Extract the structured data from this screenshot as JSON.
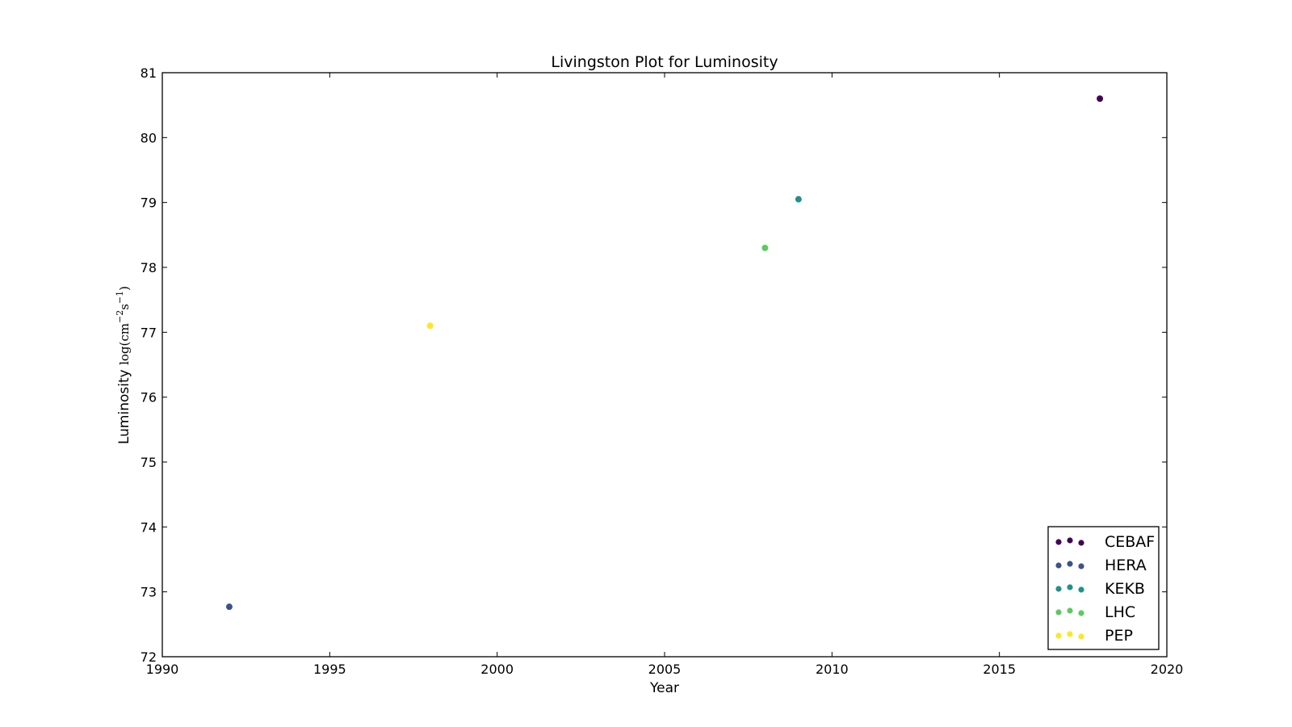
{
  "chart_data": {
    "type": "scatter",
    "title": "Livingston Plot for Luminosity",
    "xlabel": "Year",
    "ylabel": {
      "text": "Luminosity",
      "unit_parts": [
        "log(cm",
        "−2",
        "s",
        "−1",
        ")"
      ]
    },
    "xlim": [
      1990,
      2020
    ],
    "ylim": [
      72,
      81
    ],
    "x_ticks": [
      1990,
      1995,
      2000,
      2005,
      2010,
      2015,
      2020
    ],
    "y_ticks": [
      72,
      73,
      74,
      75,
      76,
      77,
      78,
      79,
      80,
      81
    ],
    "grid": false,
    "legend_position": "bottom-right",
    "series": [
      {
        "name": "CEBAF",
        "color": "#440154",
        "points": [
          {
            "x": 2018,
            "y": 80.6
          }
        ]
      },
      {
        "name": "HERA",
        "color": "#3b528b",
        "points": [
          {
            "x": 1992,
            "y": 72.77
          }
        ]
      },
      {
        "name": "KEKB",
        "color": "#21918c",
        "points": [
          {
            "x": 2009,
            "y": 79.05
          }
        ]
      },
      {
        "name": "LHC",
        "color": "#5ec962",
        "points": [
          {
            "x": 2008,
            "y": 78.3
          }
        ]
      },
      {
        "name": "PEP",
        "color": "#fde725",
        "points": [
          {
            "x": 1998,
            "y": 77.1
          }
        ]
      }
    ]
  }
}
